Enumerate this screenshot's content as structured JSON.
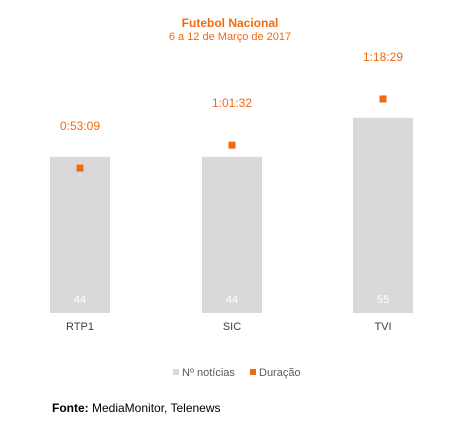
{
  "chart_data": {
    "type": "bar",
    "title": "Futebol Nacional",
    "subtitle": "6 a 12 de Março de 2017",
    "categories": [
      "RTP1",
      "SIC",
      "TVI"
    ],
    "series": [
      {
        "name": "Nº notícias",
        "kind": "bar",
        "values": [
          44,
          44,
          55
        ],
        "labels": [
          "44",
          "44",
          "55"
        ],
        "color": "#d9d9d9"
      },
      {
        "name": "Duração",
        "kind": "marker",
        "values_seconds": [
          3189,
          3692,
          4709
        ],
        "labels": [
          "0:53:09",
          "1:01:32",
          "1:18:29"
        ],
        "color": "#f26a0f"
      }
    ],
    "legend_position": "bottom",
    "grid": false
  },
  "source": {
    "label": "Fonte:",
    "text": "MediaMonitor, Telenews"
  }
}
